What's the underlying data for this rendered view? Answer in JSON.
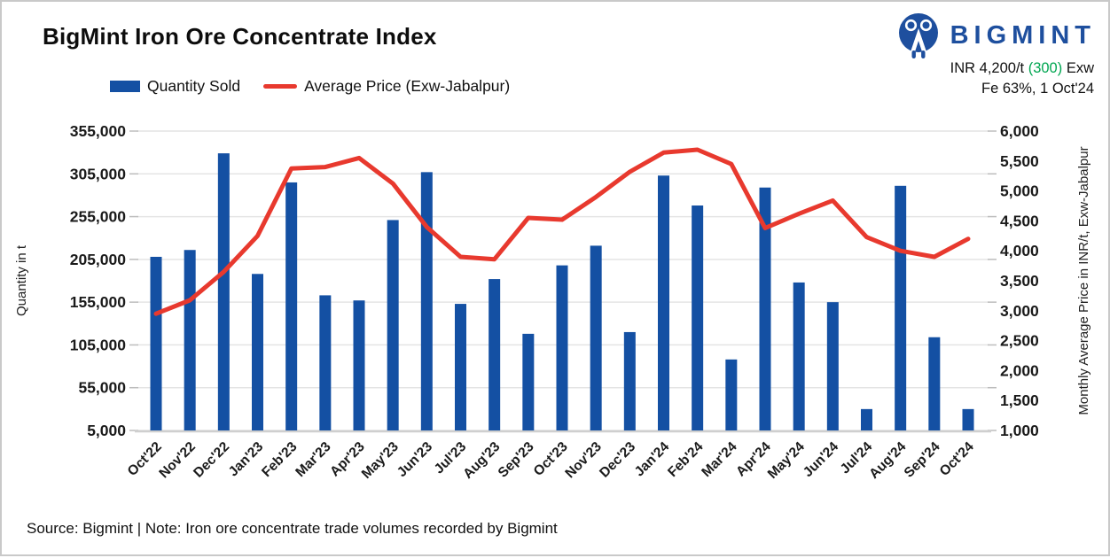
{
  "header": {
    "title": "BigMint Iron Ore Concentrate Index",
    "logo_text": "BIGMINT",
    "price_prefix": "INR 4,200/t ",
    "price_change": "(300)",
    "price_suffix": " Exw",
    "spec_line": "Fe 63%, 1 Oct'24"
  },
  "legend": [
    {
      "label": "Quantity Sold",
      "type": "bar",
      "color": "#1450a3"
    },
    {
      "label": "Average Price (Exw-Jabalpur)",
      "type": "line",
      "color": "#e8392e"
    }
  ],
  "footer": {
    "note": "Source: Bigmint | Note: Iron ore concentrate trade volumes recorded by Bigmint"
  },
  "colors": {
    "bar": "#1450a3",
    "line": "#e8392e",
    "brand_navy": "#1e4f9e",
    "change_green": "#00a651",
    "grid": "#e4e4e4",
    "axis_line": "#cfcfcf",
    "tick": "#bdbdbd",
    "text": "#1a1a1a"
  },
  "chart_data": {
    "type": "bar",
    "subtype": "bar+line dual axis",
    "title": "BigMint Iron Ore Concentrate Index",
    "grid": true,
    "legend_position": "top",
    "categories": [
      "Oct'22",
      "Nov'22",
      "Dec'22",
      "Jan'23",
      "Feb'23",
      "Mar'23",
      "Apr'23",
      "May'23",
      "Jun'23",
      "Jul'23",
      "Aug'23",
      "Sep'23",
      "Oct'23",
      "Nov'23",
      "Dec'23",
      "Jan'24",
      "Feb'24",
      "Mar'24",
      "Apr'24",
      "May'24",
      "Jun'24",
      "Jul'24",
      "Aug'24",
      "Sep'24",
      "Oct'24"
    ],
    "series": [
      {
        "name": "Quantity Sold",
        "type": "bar",
        "axis": "left",
        "color": "#1450a3",
        "values": [
          208000,
          216000,
          329000,
          188000,
          295000,
          163000,
          157000,
          251000,
          307000,
          153000,
          182000,
          118000,
          198000,
          221000,
          120000,
          303000,
          268000,
          88000,
          289000,
          178000,
          155000,
          30000,
          291000,
          114000,
          30000
        ]
      },
      {
        "name": "Average Price (Exw-Jabalpur)",
        "type": "line",
        "axis": "right",
        "color": "#e8392e",
        "values": [
          2950,
          3175,
          3650,
          4250,
          5375,
          5400,
          5550,
          5125,
          4400,
          3900,
          3860,
          4550,
          4520,
          4900,
          5320,
          5640,
          5690,
          5450,
          4380,
          4620,
          4840,
          4230,
          4000,
          3900,
          4200
        ]
      }
    ],
    "left_axis": {
      "title": "Quantity in t",
      "min": 5000,
      "max": 355000,
      "step": 50000,
      "tick_labels": [
        "355,000",
        "305,000",
        "255,000",
        "205,000",
        "155,000",
        "105,000",
        "55,000",
        "5,000"
      ]
    },
    "right_axis": {
      "title": "Monthly Average Price in INR/t, Exw-Jabalpur",
      "min": 1000,
      "max": 6000,
      "step": 500,
      "tick_labels": [
        "6,000",
        "5,500",
        "5,000",
        "4,500",
        "4,000",
        "3,500",
        "3,000",
        "2,500",
        "2,000",
        "1,500",
        "1,000"
      ]
    }
  }
}
